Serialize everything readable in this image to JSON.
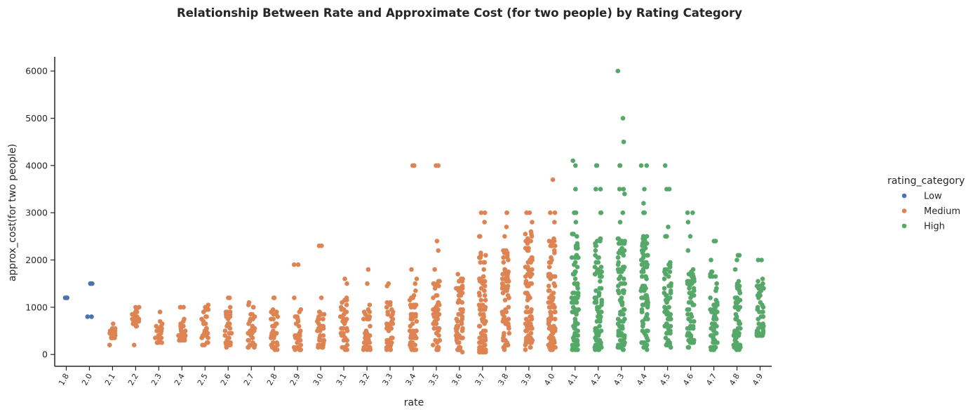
{
  "chart_data": {
    "type": "scatter",
    "subtype": "strip",
    "title": "Relationship Between Rate and Approximate Cost (for two people) by Rating Category",
    "xlabel": "rate",
    "ylabel": "approx_cost(for two people)",
    "categories": [
      "1.8",
      "2.0",
      "2.1",
      "2.2",
      "2.3",
      "2.4",
      "2.5",
      "2.6",
      "2.7",
      "2.8",
      "2.9",
      "3.0",
      "3.1",
      "3.2",
      "3.3",
      "3.4",
      "3.5",
      "3.6",
      "3.7",
      "3.8",
      "3.9",
      "4.0",
      "4.1",
      "4.2",
      "4.3",
      "4.4",
      "4.5",
      "4.6",
      "4.7",
      "4.8",
      "4.9"
    ],
    "yticks": [
      0,
      1000,
      2000,
      3000,
      4000,
      5000,
      6000
    ],
    "ylim": [
      -250,
      6300
    ],
    "grid": false,
    "legend": {
      "title": "rating_category",
      "position": "right",
      "entries": [
        "Low",
        "Medium",
        "High"
      ]
    },
    "series": [
      {
        "name": "Low",
        "color": "#4c72b0",
        "points": [
          [
            "1.8",
            1200
          ],
          [
            "1.8",
            1200
          ],
          [
            "1.8",
            1200
          ],
          [
            "2.0",
            1500
          ],
          [
            "2.0",
            1500
          ],
          [
            "2.0",
            1500
          ],
          [
            "2.0",
            800
          ],
          [
            "2.0",
            800
          ]
        ]
      },
      {
        "name": "Medium",
        "color": "#dd8452",
        "ranges": [
          {
            "x": "2.1",
            "min": 350,
            "max": 550,
            "extra": [
              650,
              200,
              500,
              450
            ]
          },
          {
            "x": "2.2",
            "min": 600,
            "max": 1000,
            "extra": [
              200,
              750,
              1000,
              1000
            ]
          },
          {
            "x": "2.3",
            "min": 250,
            "max": 800,
            "extra": [
              900,
              250,
              500,
              700
            ]
          },
          {
            "x": "2.4",
            "min": 300,
            "max": 700,
            "extra": [
              1000,
              1000,
              1000,
              750,
              300
            ]
          },
          {
            "x": "2.5",
            "min": 200,
            "max": 1000,
            "extra": [
              1050,
              1000
            ]
          },
          {
            "x": "2.6",
            "min": 150,
            "max": 1000,
            "extra": [
              1200,
              1200
            ]
          },
          {
            "x": "2.7",
            "min": 150,
            "max": 1000,
            "extra": [
              1100,
              1050
            ]
          },
          {
            "x": "2.8",
            "min": 100,
            "max": 1000,
            "extra": [
              1200,
              1200
            ]
          },
          {
            "x": "2.9",
            "min": 100,
            "max": 1000,
            "extra": [
              1900,
              1900,
              1200
            ]
          },
          {
            "x": "3.0",
            "min": 100,
            "max": 1000,
            "extra": [
              2300,
              2300,
              1200
            ]
          },
          {
            "x": "3.1",
            "min": 100,
            "max": 1200,
            "extra": [
              1600,
              1500
            ]
          },
          {
            "x": "3.2",
            "min": 100,
            "max": 1100,
            "extra": [
              1800,
              1500
            ]
          },
          {
            "x": "3.3",
            "min": 100,
            "max": 1200,
            "extra": [
              1500,
              1450
            ]
          },
          {
            "x": "3.4",
            "min": 100,
            "max": 1400,
            "extra": [
              4000,
              4000,
              1800,
              1600,
              1500
            ]
          },
          {
            "x": "3.5",
            "min": 100,
            "max": 1600,
            "extra": [
              4000,
              4000,
              2400,
              2200,
              1800
            ]
          },
          {
            "x": "3.6",
            "min": 50,
            "max": 1700,
            "extra": [
              1700,
              1600
            ]
          },
          {
            "x": "3.7",
            "min": 50,
            "max": 2200,
            "extra": [
              3000,
              3000,
              2800,
              2500,
              2500
            ]
          },
          {
            "x": "3.8",
            "min": 100,
            "max": 2200,
            "extra": [
              3000,
              3000,
              2700,
              2500
            ]
          },
          {
            "x": "3.9",
            "min": 100,
            "max": 2600,
            "extra": [
              3000,
              3000,
              2800,
              2500
            ]
          },
          {
            "x": "4.0",
            "min": 100,
            "max": 2500,
            "extra": [
              3700,
              3000,
              3000,
              2800
            ]
          }
        ]
      },
      {
        "name": "High",
        "color": "#55a868",
        "ranges": [
          {
            "x": "4.1",
            "min": 100,
            "max": 2600,
            "extra": [
              4100,
              4000,
              3500,
              3000,
              3000,
              2800
            ]
          },
          {
            "x": "4.2",
            "min": 100,
            "max": 2500,
            "extra": [
              4000,
              4000,
              3500,
              3500,
              3000,
              3000,
              2400,
              2300
            ]
          },
          {
            "x": "4.3",
            "min": 100,
            "max": 2500,
            "extra": [
              6000,
              5000,
              4500,
              4000,
              4000,
              3500,
              3500,
              3400,
              3000,
              2800
            ]
          },
          {
            "x": "4.4",
            "min": 100,
            "max": 2500,
            "extra": [
              4000,
              4000,
              3500,
              3200,
              3000,
              3000,
              2500
            ]
          },
          {
            "x": "4.5",
            "min": 150,
            "max": 2000,
            "extra": [
              4000,
              3500,
              3500,
              2700,
              2500,
              2500
            ]
          },
          {
            "x": "4.6",
            "min": 150,
            "max": 1800,
            "extra": [
              3000,
              3000,
              2800,
              2500,
              2200
            ]
          },
          {
            "x": "4.7",
            "min": 100,
            "max": 1800,
            "extra": [
              2400,
              2400,
              2000,
              1000,
              900
            ]
          },
          {
            "x": "4.8",
            "min": 100,
            "max": 1600,
            "extra": [
              2100,
              2100,
              2000,
              1800,
              1400,
              1300,
              1000,
              1000,
              400,
              400,
              200
            ]
          },
          {
            "x": "4.9",
            "min": 400,
            "max": 1600,
            "extra": [
              2000,
              2000,
              1600,
              1500,
              1400,
              1000,
              400,
              400,
              400
            ]
          }
        ]
      }
    ]
  }
}
